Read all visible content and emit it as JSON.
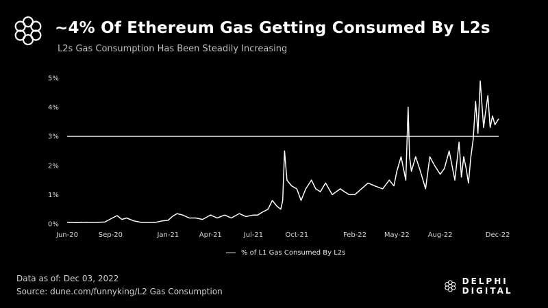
{
  "header": {
    "title": "~4% Of Ethereum Gas Getting Consumed By L2s",
    "subtitle": "L2s Gas Consumption Has Been Steadily Increasing",
    "logo_icon": "flower-ring-logo-icon"
  },
  "footer": {
    "date_text": "Data as of: Dec 03, 2022",
    "source_text": "Source: dune.com/funnyking/L2 Gas Consumption",
    "brand_name": "DELPHI DIGITAL",
    "brand_icon": "flower-ring-logo-icon"
  },
  "colors": {
    "background": "#000000",
    "line": "#ffffff",
    "reference_line": "#ffffff"
  },
  "chart_data": {
    "type": "line",
    "title": "~4% Of Ethereum Gas Getting Consumed By L2s",
    "subtitle": "L2s Gas Consumption Has Been Steadily Increasing",
    "xlabel": "",
    "ylabel": "",
    "y_unit": "%",
    "ylim": [
      0,
      5
    ],
    "y_ticks": [
      0,
      1,
      2,
      3,
      4,
      5
    ],
    "y_tick_labels": [
      "0%",
      "1%",
      "2%",
      "3%",
      "4%",
      "5%"
    ],
    "x_range": [
      "2020-06-01",
      "2022-12-03"
    ],
    "x_ticks": [
      "2020-06-01",
      "2020-09-01",
      "2021-01-01",
      "2021-04-01",
      "2021-07-01",
      "2021-10-01",
      "2022-02-01",
      "2022-05-01",
      "2022-08-01",
      "2022-12-01"
    ],
    "x_tick_labels": [
      "Jun-20",
      "Sep-20",
      "Jan-21",
      "Apr-21",
      "Jul-21",
      "Oct-21",
      "Feb-22",
      "May-22",
      "Aug-22",
      "Dec-22"
    ],
    "reference_line": {
      "y": 3
    },
    "grid": false,
    "legend": {
      "position": "bottom-center"
    },
    "series": [
      {
        "name": "% of L1 Gas Consumed By L2s",
        "x": [
          "2020-06-01",
          "2020-06-20",
          "2020-07-10",
          "2020-08-01",
          "2020-08-20",
          "2020-09-05",
          "2020-09-15",
          "2020-09-25",
          "2020-10-05",
          "2020-10-20",
          "2020-11-05",
          "2020-11-20",
          "2020-12-05",
          "2020-12-20",
          "2021-01-01",
          "2021-01-10",
          "2021-01-20",
          "2021-02-01",
          "2021-02-15",
          "2021-03-01",
          "2021-03-15",
          "2021-04-01",
          "2021-04-15",
          "2021-05-01",
          "2021-05-15",
          "2021-06-01",
          "2021-06-15",
          "2021-07-01",
          "2021-07-10",
          "2021-07-20",
          "2021-08-01",
          "2021-08-10",
          "2021-08-20",
          "2021-08-28",
          "2021-09-01",
          "2021-09-05",
          "2021-09-10",
          "2021-09-20",
          "2021-10-01",
          "2021-10-10",
          "2021-10-20",
          "2021-11-01",
          "2021-11-10",
          "2021-11-20",
          "2021-12-01",
          "2021-12-15",
          "2022-01-01",
          "2022-01-10",
          "2022-01-20",
          "2022-02-01",
          "2022-02-15",
          "2022-03-01",
          "2022-03-15",
          "2022-04-01",
          "2022-04-15",
          "2022-04-25",
          "2022-05-01",
          "2022-05-10",
          "2022-05-20",
          "2022-05-25",
          "2022-05-28",
          "2022-06-01",
          "2022-06-10",
          "2022-06-20",
          "2022-07-01",
          "2022-07-10",
          "2022-07-20",
          "2022-08-01",
          "2022-08-10",
          "2022-08-20",
          "2022-09-01",
          "2022-09-10",
          "2022-09-15",
          "2022-09-20",
          "2022-09-25",
          "2022-09-30",
          "2022-10-05",
          "2022-10-10",
          "2022-10-15",
          "2022-10-20",
          "2022-10-25",
          "2022-11-01",
          "2022-11-05",
          "2022-11-10",
          "2022-11-15",
          "2022-11-20",
          "2022-11-25",
          "2022-12-03"
        ],
        "y": [
          0.05,
          0.04,
          0.05,
          0.05,
          0.06,
          0.2,
          0.28,
          0.15,
          0.2,
          0.1,
          0.05,
          0.05,
          0.05,
          0.1,
          0.12,
          0.25,
          0.35,
          0.3,
          0.2,
          0.2,
          0.15,
          0.3,
          0.2,
          0.3,
          0.2,
          0.35,
          0.25,
          0.3,
          0.3,
          0.4,
          0.5,
          0.8,
          0.6,
          0.5,
          0.8,
          2.5,
          1.5,
          1.3,
          1.2,
          0.8,
          1.2,
          1.5,
          1.2,
          1.1,
          1.4,
          1.0,
          1.2,
          1.1,
          1.0,
          1.0,
          1.2,
          1.4,
          1.3,
          1.2,
          1.5,
          1.3,
          1.8,
          2.3,
          1.5,
          4.0,
          2.3,
          1.8,
          2.3,
          1.8,
          1.2,
          2.3,
          2.0,
          1.7,
          1.9,
          2.5,
          1.5,
          2.8,
          1.6,
          2.3,
          1.9,
          1.4,
          2.3,
          2.9,
          4.2,
          3.1,
          4.9,
          3.3,
          3.8,
          4.4,
          3.3,
          3.7,
          3.4,
          3.6
        ]
      }
    ]
  }
}
